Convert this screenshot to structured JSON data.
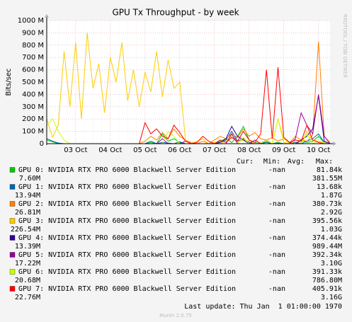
{
  "chart_data": {
    "type": "line",
    "title": "GPU Tx Throughput - by week",
    "y_label": "Bits/sec",
    "watermark": "RRDTOOL / TOBI OETIKER",
    "categories": [
      null,
      null,
      null,
      null,
      null,
      "03 Oct",
      null,
      null,
      null,
      null,
      null,
      "04 Oct",
      null,
      null,
      null,
      null,
      null,
      "05 Oct",
      null,
      null,
      null,
      null,
      null,
      "06 Oct",
      null,
      null,
      null,
      null,
      null,
      "07 Oct",
      null,
      null,
      null,
      null,
      null,
      "08 Oct",
      null,
      null,
      null,
      null,
      null,
      "09 Oct",
      null,
      null,
      null,
      null,
      null,
      "10 Oct",
      null,
      null
    ],
    "ylim": [
      0,
      1000
    ],
    "yticks": [
      0,
      {
        "value": 100,
        "label": "100 M"
      },
      {
        "value": 200,
        "label": "200 M"
      },
      {
        "value": 300,
        "label": "300 M"
      },
      {
        "value": 400,
        "label": "400 M"
      },
      {
        "value": 500,
        "label": "500 M"
      },
      {
        "value": 600,
        "label": "600 M"
      },
      {
        "value": 700,
        "label": "700 M"
      },
      {
        "value": 800,
        "label": "800 M"
      },
      {
        "value": 900,
        "label": "900 M"
      },
      {
        "value": 1000,
        "label": "1000 M"
      }
    ],
    "grid": true,
    "series": [
      {
        "name": "GPU 0: NVIDIA RTX PRO 6000 Blackwell Server Edition",
        "color": "#00cc00",
        "values": [
          30,
          15,
          0,
          0,
          0,
          0,
          0,
          0,
          0,
          0,
          0,
          0,
          0,
          0,
          0,
          0,
          0,
          0,
          10,
          0,
          80,
          20,
          40,
          10,
          0,
          0,
          0,
          0,
          0,
          0,
          20,
          40,
          10,
          60,
          140,
          30,
          10,
          0,
          20,
          0,
          10,
          0,
          5,
          0,
          30,
          10,
          20,
          60,
          10,
          0
        ]
      },
      {
        "name": "GPU 1: NVIDIA RTX PRO 6000 Blackwell Server Edition",
        "color": "#0066b3",
        "values": [
          40,
          20,
          5,
          0,
          0,
          0,
          0,
          0,
          0,
          0,
          0,
          0,
          0,
          0,
          0,
          0,
          0,
          0,
          20,
          0,
          10,
          5,
          0,
          15,
          0,
          0,
          0,
          0,
          0,
          0,
          10,
          30,
          100,
          20,
          40,
          10,
          0,
          0,
          10,
          0,
          5,
          0,
          0,
          10,
          0,
          20,
          40,
          80,
          10,
          0
        ]
      },
      {
        "name": "GPU 2: NVIDIA RTX PRO 6000 Blackwell Server Edition",
        "color": "#ff8000",
        "values": [
          0,
          0,
          0,
          0,
          0,
          0,
          0,
          0,
          0,
          0,
          0,
          0,
          0,
          0,
          0,
          0,
          0,
          20,
          60,
          30,
          90,
          40,
          120,
          60,
          30,
          10,
          0,
          20,
          0,
          30,
          60,
          40,
          80,
          50,
          120,
          60,
          90,
          40,
          30,
          50,
          20,
          40,
          10,
          60,
          30,
          20,
          70,
          830,
          60,
          10
        ]
      },
      {
        "name": "GPU 3: NVIDIA RTX PRO 6000 Blackwell Server Edition",
        "color": "#ffcc00",
        "values": [
          200,
          50,
          150,
          750,
          300,
          820,
          200,
          900,
          450,
          650,
          250,
          700,
          500,
          820,
          350,
          600,
          300,
          580,
          420,
          750,
          380,
          680,
          450,
          500,
          30,
          0,
          20,
          40,
          0,
          10,
          0,
          20,
          60,
          10,
          30,
          20,
          0,
          10,
          30,
          0,
          200,
          10,
          0,
          20,
          10,
          100,
          30,
          20,
          10,
          0
        ]
      },
      {
        "name": "GPU 4: NVIDIA RTX PRO 6000 Blackwell Server Edition",
        "color": "#330099",
        "values": [
          0,
          0,
          0,
          0,
          0,
          0,
          0,
          0,
          0,
          0,
          0,
          0,
          0,
          0,
          0,
          0,
          0,
          0,
          0,
          0,
          0,
          0,
          0,
          0,
          0,
          0,
          0,
          0,
          0,
          0,
          10,
          40,
          140,
          60,
          30,
          0,
          0,
          0,
          0,
          0,
          0,
          0,
          0,
          0,
          30,
          60,
          120,
          390,
          20,
          0
        ]
      },
      {
        "name": "GPU 5: NVIDIA RTX PRO 6000 Blackwell Server Edition",
        "color": "#990099",
        "values": [
          0,
          0,
          0,
          0,
          0,
          0,
          0,
          0,
          0,
          0,
          0,
          0,
          0,
          0,
          0,
          0,
          0,
          0,
          0,
          0,
          40,
          0,
          0,
          0,
          20,
          0,
          0,
          0,
          0,
          0,
          0,
          0,
          80,
          0,
          0,
          0,
          30,
          0,
          0,
          0,
          0,
          0,
          0,
          40,
          250,
          150,
          80,
          400,
          60,
          0
        ]
      },
      {
        "name": "GPU 6: NVIDIA RTX PRO 6000 Blackwell Server Edition",
        "color": "#ccff00",
        "values": [
          150,
          200,
          100,
          30,
          0,
          0,
          0,
          0,
          0,
          0,
          0,
          0,
          0,
          0,
          0,
          0,
          0,
          0,
          0,
          0,
          0,
          100,
          60,
          0,
          0,
          0,
          0,
          0,
          0,
          0,
          0,
          0,
          0,
          0,
          50,
          0,
          0,
          0,
          0,
          0,
          200,
          40,
          0,
          0,
          0,
          80,
          0,
          20,
          0,
          0
        ]
      },
      {
        "name": "GPU 7: NVIDIA RTX PRO 6000 Blackwell Server Edition",
        "color": "#ff0000",
        "values": [
          0,
          0,
          0,
          0,
          0,
          0,
          0,
          0,
          0,
          0,
          0,
          0,
          0,
          0,
          0,
          0,
          0,
          170,
          80,
          120,
          60,
          40,
          150,
          90,
          20,
          0,
          10,
          60,
          20,
          0,
          30,
          10,
          50,
          20,
          100,
          30,
          10,
          80,
          600,
          40,
          620,
          50,
          10,
          30,
          20,
          150,
          30,
          10,
          0,
          0
        ]
      }
    ],
    "legend_headers": [
      "Cur:",
      "Min:",
      "Avg:",
      "Max:"
    ],
    "legend_stats": [
      [
        "-nan",
        "81.84k",
        "7.60M",
        "381.55M"
      ],
      [
        "-nan",
        "13.68k",
        "13.94M",
        "1.87G"
      ],
      [
        "-nan",
        "380.73k",
        "26.81M",
        "2.92G"
      ],
      [
        "-nan",
        "395.56k",
        "226.54M",
        "1.03G"
      ],
      [
        "-nan",
        "374.44k",
        "13.39M",
        "989.44M"
      ],
      [
        "-nan",
        "392.34k",
        "17.22M",
        "3.10G"
      ],
      [
        "-nan",
        "391.33k",
        "20.68M",
        "786.80M"
      ],
      [
        "-nan",
        "405.91k",
        "22.76M",
        "3.16G"
      ]
    ],
    "last_update": "Last update: Thu Jan  1 01:00:00 1970",
    "credit": "Munin 2.0.75"
  }
}
